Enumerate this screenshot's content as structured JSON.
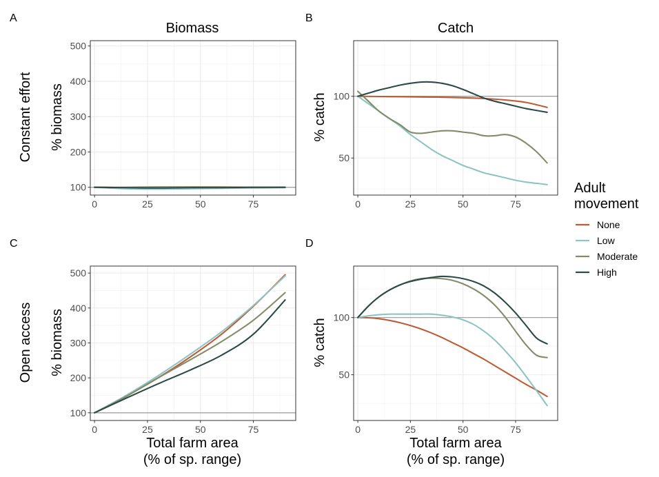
{
  "colors": {
    "None": "#BF5B34",
    "Low": "#8DC3C6",
    "Moderate": "#838C68",
    "High": "#2B4A47"
  },
  "col_titles": {
    "biomass": "Biomass",
    "catch": "Catch"
  },
  "row_titles": {
    "constant": "Constant effort",
    "open": "Open access"
  },
  "ylabel_biomass": "% biomass",
  "ylabel_catch": "% catch",
  "xlabel": {
    "line1": "Total farm area",
    "line2": "(% of sp. range)"
  },
  "legend": {
    "title_line1": "Adult",
    "title_line2": "movement",
    "entries": [
      "None",
      "Low",
      "Moderate",
      "High"
    ]
  },
  "chart_data": [
    {
      "panel": "A",
      "type": "line",
      "title": "Biomass",
      "ylabel": "% biomass",
      "xlim": [
        -2,
        95
      ],
      "ylim": [
        78,
        515
      ],
      "xticks": [
        0,
        25,
        50,
        75
      ],
      "yticks": [
        100,
        200,
        300,
        400,
        500
      ],
      "refline": 100,
      "series": [
        {
          "name": "None",
          "x": [
            0,
            15,
            30,
            45,
            60,
            75,
            90
          ],
          "y": [
            100,
            99,
            98,
            99,
            99,
            99,
            100
          ]
        },
        {
          "name": "Low",
          "x": [
            0,
            15,
            30,
            45,
            60,
            75,
            90
          ],
          "y": [
            100,
            96,
            95,
            96,
            97,
            98,
            99
          ]
        },
        {
          "name": "Moderate",
          "x": [
            0,
            15,
            30,
            45,
            60,
            75,
            90
          ],
          "y": [
            100,
            100,
            101,
            101,
            101,
            100,
            100
          ]
        },
        {
          "name": "High",
          "x": [
            0,
            15,
            30,
            45,
            60,
            75,
            90
          ],
          "y": [
            100,
            99,
            98,
            99,
            99,
            100,
            100
          ]
        }
      ]
    },
    {
      "panel": "B",
      "type": "line",
      "title": "Catch",
      "ylabel": "% catch",
      "xlim": [
        -2,
        95
      ],
      "ylim": [
        20,
        145
      ],
      "xticks": [
        0,
        25,
        50,
        75
      ],
      "yticks": [
        50,
        100
      ],
      "refline": 100,
      "series": [
        {
          "name": "None",
          "x": [
            0,
            10,
            20,
            30,
            40,
            50,
            60,
            70,
            80,
            90
          ],
          "y": [
            100,
            99.8,
            99.6,
            99.4,
            99.2,
            98.8,
            98.2,
            97,
            95,
            91
          ]
        },
        {
          "name": "Low",
          "x": [
            0,
            5,
            10,
            15,
            20,
            25,
            30,
            35,
            40,
            45,
            50,
            55,
            60,
            65,
            70,
            75,
            80,
            85,
            90
          ],
          "y": [
            100,
            94,
            88,
            82,
            76,
            69,
            63,
            57,
            52,
            48,
            44,
            41,
            38,
            36,
            34,
            32,
            30.5,
            29.5,
            28.5
          ]
        },
        {
          "name": "Moderate",
          "x": [
            0,
            5,
            10,
            15,
            20,
            25,
            30,
            35,
            40,
            45,
            50,
            55,
            60,
            65,
            70,
            75,
            80,
            85,
            90
          ],
          "y": [
            104,
            96,
            88,
            82,
            77,
            71,
            70,
            71,
            72,
            72,
            71,
            70,
            68,
            68,
            69,
            67,
            62,
            55,
            46
          ]
        },
        {
          "name": "High",
          "x": [
            0,
            5,
            10,
            15,
            20,
            25,
            30,
            35,
            40,
            45,
            50,
            55,
            60,
            65,
            70,
            75,
            80,
            85,
            90
          ],
          "y": [
            100,
            102.5,
            105,
            107,
            109,
            110.5,
            111.5,
            111.5,
            110.5,
            108.5,
            105.5,
            102,
            98.5,
            96,
            94,
            92,
            90,
            88.5,
            87
          ]
        }
      ]
    },
    {
      "panel": "C",
      "type": "line",
      "title": "",
      "ylabel": "% biomass",
      "xlim": [
        -2,
        95
      ],
      "ylim": [
        78,
        520
      ],
      "xticks": [
        0,
        25,
        50,
        75
      ],
      "yticks": [
        100,
        200,
        300,
        400,
        500
      ],
      "refline": 100,
      "series": [
        {
          "name": "None",
          "x": [
            0,
            15,
            30,
            45,
            60,
            75,
            90
          ],
          "y": [
            100,
            148,
            200,
            259,
            325,
            405,
            495
          ]
        },
        {
          "name": "Low",
          "x": [
            0,
            15,
            30,
            45,
            60,
            75,
            90
          ],
          "y": [
            100,
            150,
            206,
            267,
            332,
            407,
            492
          ]
        },
        {
          "name": "Moderate",
          "x": [
            0,
            15,
            30,
            45,
            60,
            75,
            90
          ],
          "y": [
            100,
            147,
            200,
            251,
            304,
            365,
            444
          ]
        },
        {
          "name": "High",
          "x": [
            0,
            15,
            30,
            45,
            60,
            75,
            90
          ],
          "y": [
            100,
            142,
            183,
            222,
            265,
            325,
            423
          ]
        }
      ]
    },
    {
      "panel": "D",
      "type": "line",
      "title": "",
      "ylabel": "% catch",
      "xlim": [
        -2,
        95
      ],
      "ylim": [
        10,
        145
      ],
      "xticks": [
        0,
        25,
        50,
        75
      ],
      "yticks": [
        50,
        100
      ],
      "refline": 100,
      "series": [
        {
          "name": "None",
          "x": [
            0,
            5,
            10,
            15,
            20,
            25,
            30,
            35,
            40,
            45,
            50,
            55,
            60,
            65,
            70,
            75,
            80,
            85,
            90
          ],
          "y": [
            100,
            99.8,
            99,
            97.5,
            95.5,
            93,
            90,
            86.5,
            82.5,
            78,
            73.5,
            68.5,
            63.5,
            58,
            52.5,
            47,
            41.5,
            36.5,
            31
          ]
        },
        {
          "name": "Low",
          "x": [
            0,
            5,
            10,
            15,
            20,
            25,
            30,
            35,
            40,
            45,
            50,
            55,
            60,
            65,
            70,
            75,
            80,
            85,
            90
          ],
          "y": [
            100,
            101.5,
            102.5,
            103,
            103,
            103,
            103,
            103,
            102,
            100.5,
            98,
            94,
            88,
            80.5,
            71,
            60.5,
            48.5,
            36,
            23
          ]
        },
        {
          "name": "Moderate",
          "x": [
            0,
            5,
            10,
            15,
            20,
            25,
            30,
            35,
            40,
            45,
            50,
            55,
            60,
            65,
            70,
            75,
            80,
            85,
            90
          ],
          "y": [
            100,
            110,
            118,
            124,
            128.5,
            132,
            134,
            134.5,
            134,
            132.5,
            129.5,
            125,
            119,
            111,
            100.5,
            88,
            76,
            67,
            65
          ]
        },
        {
          "name": "High",
          "x": [
            0,
            5,
            10,
            15,
            20,
            25,
            30,
            35,
            40,
            45,
            50,
            55,
            60,
            65,
            70,
            75,
            80,
            85,
            90
          ],
          "y": [
            100,
            110,
            118,
            124,
            128.5,
            131.5,
            133.5,
            135,
            136,
            135.5,
            134,
            131.5,
            127.5,
            121.5,
            113.5,
            104,
            93,
            82,
            77
          ]
        }
      ]
    }
  ]
}
